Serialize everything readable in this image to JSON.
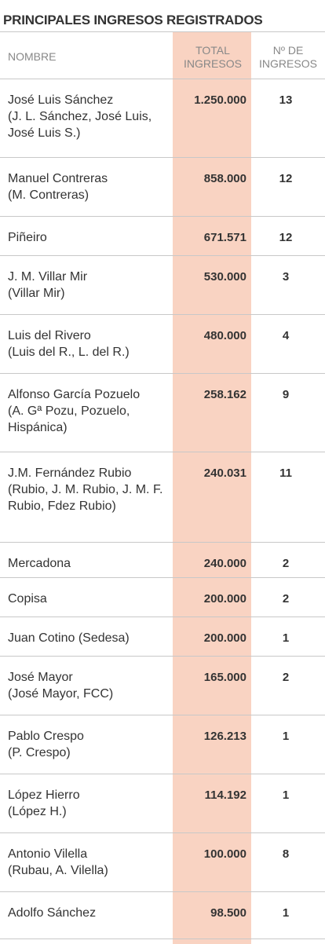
{
  "header": {
    "title": "PRINCIPALES INGRESOS REGISTRADOS"
  },
  "table": {
    "columns": [
      "NOMBRE",
      "TOTAL INGRESOS",
      "Nº DE INGRESOS"
    ],
    "rows": [
      {
        "name": "José Luis Sánchez",
        "alias": "(J. L. Sánchez, José Luis, José Luis S.)",
        "total": "1.250.000",
        "count": 13
      },
      {
        "name": "Manuel Contreras",
        "alias": "(M. Contreras)",
        "total": "858.000",
        "count": 12
      },
      {
        "name": "Piñeiro",
        "total": "671.571",
        "count": 12
      },
      {
        "name": "J. M. Villar Mir",
        "alias": "(Villar Mir)",
        "total": "530.000",
        "count": 3
      },
      {
        "name": "Luis del Rivero",
        "alias": "(Luis del R., L. del R.)",
        "total": "480.000",
        "count": 4
      },
      {
        "name": "Alfonso García Pozuelo",
        "alias": "(A. Gª Pozu, Pozuelo, Hispánica)",
        "total": "258.162",
        "count": 9
      },
      {
        "name": "J.M. Fernández Rubio",
        "alias": "(Rubio, J. M. Rubio, J. M. F. Rubio, Fdez Rubio)",
        "total": "240.031",
        "count": 11
      },
      {
        "name": "Mercadona",
        "total": "240.000",
        "count": 2
      },
      {
        "name": "Copisa",
        "total": "200.000",
        "count": 2
      },
      {
        "name": "Juan Cotino (Sedesa)",
        "total": "200.000",
        "count": 1
      },
      {
        "name": "José Mayor",
        "alias": "(José Mayor, FCC)",
        "total": "165.000",
        "count": 2
      },
      {
        "name": "Pablo Crespo",
        "alias": "(P. Crespo)",
        "total": "126.213",
        "count": 1
      },
      {
        "name": "López Hierro",
        "alias": "(López H.)",
        "total": "114.192",
        "count": 1
      },
      {
        "name": "Antonio Vilella",
        "alias": "(Rubau, A. Vilella)",
        "total": "100.000",
        "count": 8
      },
      {
        "name": "Adolfo Sánchez",
        "total": "98.500",
        "count": 1
      }
    ]
  }
}
